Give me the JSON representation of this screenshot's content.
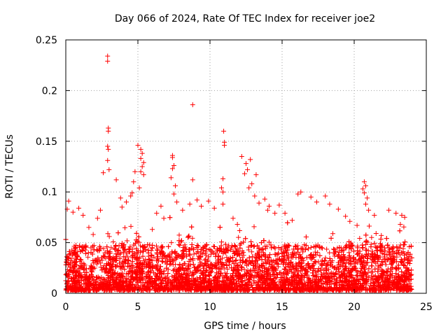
{
  "chart_data": {
    "type": "scatter",
    "title": "Day 066 of 2024, Rate Of TEC Index for receiver joe2",
    "xlabel": "GPS time / hours",
    "ylabel": "ROTI / TECUs",
    "xlim": [
      0,
      25
    ],
    "ylim": [
      0,
      0.25
    ],
    "x_ticks": [
      0,
      5,
      10,
      15,
      20,
      25
    ],
    "x_tick_labels": [
      "0",
      "5",
      "10",
      "15",
      "20",
      "25"
    ],
    "y_ticks": [
      0,
      0.05,
      0.1,
      0.15,
      0.2,
      0.25
    ],
    "y_tick_labels": [
      "0",
      "0.05",
      "0.1",
      "0.15",
      "0.2",
      "0.25"
    ],
    "grid": true,
    "legend": "none",
    "marker": "plus",
    "series_color": "#ff0000",
    "series": [
      {
        "name": "ROTI",
        "x_range_observed": [
          0,
          24
        ],
        "points": [
          [
            2.9,
            0.234
          ],
          [
            2.9,
            0.229
          ],
          [
            2.95,
            0.163
          ],
          [
            2.95,
            0.16
          ],
          [
            2.9,
            0.145
          ],
          [
            2.95,
            0.142
          ],
          [
            2.9,
            0.131
          ],
          [
            3.0,
            0.122
          ],
          [
            2.6,
            0.119
          ],
          [
            3.5,
            0.112
          ],
          [
            8.8,
            0.186
          ],
          [
            8.8,
            0.112
          ],
          [
            10.95,
            0.16
          ],
          [
            11.0,
            0.149
          ],
          [
            11.0,
            0.146
          ],
          [
            10.9,
            0.113
          ],
          [
            10.8,
            0.104
          ],
          [
            10.9,
            0.1
          ],
          [
            10.9,
            0.088
          ],
          [
            5.0,
            0.146
          ],
          [
            5.2,
            0.142
          ],
          [
            5.3,
            0.138
          ],
          [
            5.2,
            0.133
          ],
          [
            5.4,
            0.129
          ],
          [
            5.3,
            0.125
          ],
          [
            5.2,
            0.12
          ],
          [
            5.4,
            0.117
          ],
          [
            4.8,
            0.12
          ],
          [
            4.7,
            0.11
          ],
          [
            5.1,
            0.104
          ],
          [
            4.6,
            0.099
          ],
          [
            4.5,
            0.096
          ],
          [
            4.2,
            0.09
          ],
          [
            3.9,
            0.085
          ],
          [
            7.4,
            0.136
          ],
          [
            7.4,
            0.134
          ],
          [
            7.5,
            0.126
          ],
          [
            7.4,
            0.123
          ],
          [
            7.3,
            0.114
          ],
          [
            7.6,
            0.106
          ],
          [
            7.5,
            0.098
          ],
          [
            7.7,
            0.09
          ],
          [
            12.2,
            0.135
          ],
          [
            12.8,
            0.132
          ],
          [
            12.5,
            0.128
          ],
          [
            12.6,
            0.122
          ],
          [
            12.4,
            0.118
          ],
          [
            13.2,
            0.117
          ],
          [
            12.9,
            0.108
          ],
          [
            12.7,
            0.104
          ],
          [
            13.1,
            0.096
          ],
          [
            13.4,
            0.089
          ],
          [
            13.8,
            0.093
          ],
          [
            14.1,
            0.086
          ],
          [
            14.0,
            0.082
          ],
          [
            14.5,
            0.079
          ],
          [
            20.7,
            0.11
          ],
          [
            20.8,
            0.106
          ],
          [
            20.6,
            0.103
          ],
          [
            20.7,
            0.099
          ],
          [
            20.9,
            0.094
          ],
          [
            20.8,
            0.088
          ],
          [
            21.0,
            0.082
          ],
          [
            21.4,
            0.077
          ],
          [
            22.4,
            0.082
          ],
          [
            22.9,
            0.079
          ],
          [
            23.3,
            0.077
          ],
          [
            23.5,
            0.075
          ],
          [
            23.2,
            0.068
          ],
          [
            0.2,
            0.091
          ],
          [
            0.1,
            0.083
          ],
          [
            0.5,
            0.08
          ],
          [
            0.9,
            0.084
          ],
          [
            1.2,
            0.077
          ],
          [
            1.6,
            0.065
          ],
          [
            2.2,
            0.074
          ],
          [
            2.4,
            0.082
          ],
          [
            3.8,
            0.094
          ],
          [
            6.6,
            0.086
          ],
          [
            6.3,
            0.079
          ],
          [
            6.8,
            0.074
          ],
          [
            8.1,
            0.082
          ],
          [
            8.6,
            0.088
          ],
          [
            9.1,
            0.092
          ],
          [
            9.4,
            0.086
          ],
          [
            9.9,
            0.091
          ],
          [
            10.3,
            0.084
          ],
          [
            14.8,
            0.087
          ],
          [
            15.7,
            0.072
          ],
          [
            16.3,
            0.1
          ],
          [
            16.1,
            0.098
          ],
          [
            17.0,
            0.095
          ],
          [
            17.4,
            0.09
          ],
          [
            18.0,
            0.096
          ],
          [
            18.3,
            0.088
          ],
          [
            18.9,
            0.083
          ],
          [
            19.4,
            0.076
          ],
          [
            19.7,
            0.071
          ],
          [
            20.2,
            0.067
          ],
          [
            15.2,
            0.079
          ],
          [
            11.6,
            0.074
          ],
          [
            11.9,
            0.068
          ],
          [
            6.0,
            0.063
          ],
          [
            1.9,
            0.058
          ]
        ]
      }
    ]
  }
}
